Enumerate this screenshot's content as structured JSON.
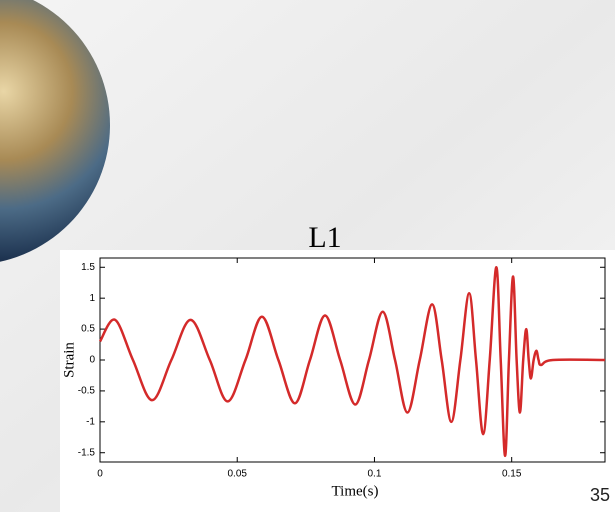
{
  "chart_data": {
    "type": "line",
    "title": "L1",
    "xlabel": "Time(s)",
    "ylabel": "Strain",
    "page_number": "35",
    "x": [
      0,
      0.0055,
      0.012,
      0.019,
      0.026,
      0.033,
      0.04,
      0.0465,
      0.053,
      0.059,
      0.065,
      0.071,
      0.0765,
      0.082,
      0.0875,
      0.093,
      0.098,
      0.103,
      0.1075,
      0.112,
      0.1165,
      0.121,
      0.1245,
      0.128,
      0.1313,
      0.1345,
      0.137,
      0.1396,
      0.142,
      0.1444,
      0.146,
      0.1476,
      0.149,
      0.1505,
      0.1518,
      0.153,
      0.1542,
      0.1553,
      0.1562,
      0.157,
      0.158,
      0.159,
      0.1598,
      0.1607,
      0.165,
      0.184
    ],
    "values": [
      0.3,
      0.65,
      0,
      -0.65,
      0,
      0.65,
      0,
      -0.67,
      0,
      0.7,
      0,
      -0.7,
      0,
      0.72,
      0,
      -0.72,
      0,
      0.78,
      0,
      -0.85,
      0,
      0.9,
      0,
      -1.0,
      0,
      1.08,
      0,
      -1.2,
      0,
      1.5,
      0,
      -1.55,
      0,
      1.35,
      0,
      -0.85,
      0,
      0.5,
      0,
      -0.3,
      0,
      0.15,
      0,
      -0.08,
      0,
      0
    ],
    "color": "#d42a2a",
    "xlim": [
      0,
      0.184
    ],
    "xticks": [
      0,
      0.05,
      0.1,
      0.15
    ],
    "ylim": [
      -1.65,
      1.65
    ],
    "yticks": [
      -1.5,
      -1,
      -0.5,
      0,
      0.5,
      1,
      1.5
    ]
  }
}
